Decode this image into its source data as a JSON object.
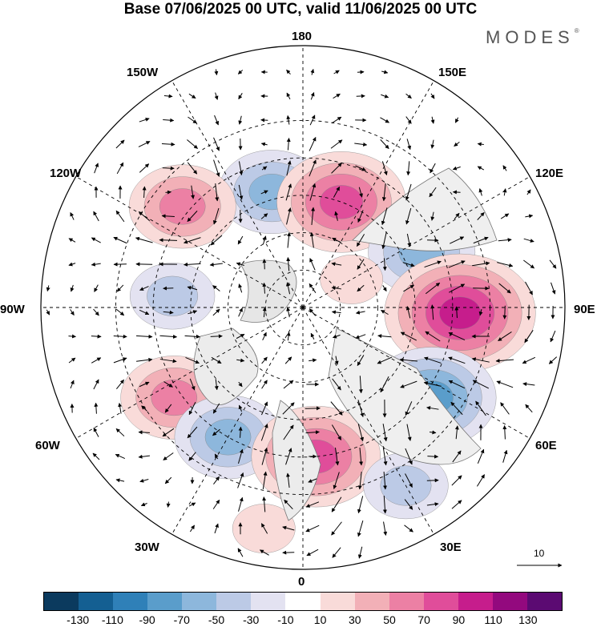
{
  "title": "Base 07/06/2025 00 UTC, valid 11/06/2025 00 UTC",
  "brand": "MODES",
  "brand_mark": "®",
  "longitude_labels": {
    "top": "180",
    "bottom": "0",
    "left": "90W",
    "right": "90E",
    "upper_left_1": "150W",
    "upper_left_2": "120W",
    "lower_left_1": "60W",
    "lower_left_2": "30W",
    "upper_right_1": "150E",
    "upper_right_2": "120E",
    "lower_right_1": "60E",
    "lower_right_2": "30E"
  },
  "vector_scale_label": "10",
  "colorbar": {
    "colors": [
      "#0b3a5e",
      "#145f92",
      "#2f80b8",
      "#5a9dcb",
      "#8db7dc",
      "#bccae6",
      "#e3e2f1",
      "#ffffff",
      "#f9dbd9",
      "#f2b0b7",
      "#ec80a4",
      "#e04d9a",
      "#c61d8c",
      "#93097e",
      "#5b0a72"
    ],
    "tick_labels": [
      "-130",
      "-110",
      "-90",
      "-70",
      "-50",
      "-30",
      "-10",
      "10",
      "30",
      "50",
      "70",
      "90",
      "110",
      "130"
    ]
  },
  "anomaly_centers": [
    {
      "lon": -165,
      "lat": 58,
      "value": -55
    },
    {
      "lon": 160,
      "lat": 60,
      "value": 75
    },
    {
      "lon": -130,
      "lat": 48,
      "value": 65
    },
    {
      "lon": 115,
      "lat": 55,
      "value": -60
    },
    {
      "lon": 88,
      "lat": 48,
      "value": 95
    },
    {
      "lon": -95,
      "lat": 55,
      "value": -45
    },
    {
      "lon": -55,
      "lat": 48,
      "value": 60
    },
    {
      "lon": 55,
      "lat": 48,
      "value": -70
    },
    {
      "lon": -30,
      "lat": 50,
      "value": -50
    },
    {
      "lon": 5,
      "lat": 50,
      "value": 80
    },
    {
      "lon": 30,
      "lat": 35,
      "value": -35
    },
    {
      "lon": 120,
      "lat": 75,
      "value": 20
    },
    {
      "lon": -10,
      "lat": 30,
      "value": 20
    }
  ]
}
